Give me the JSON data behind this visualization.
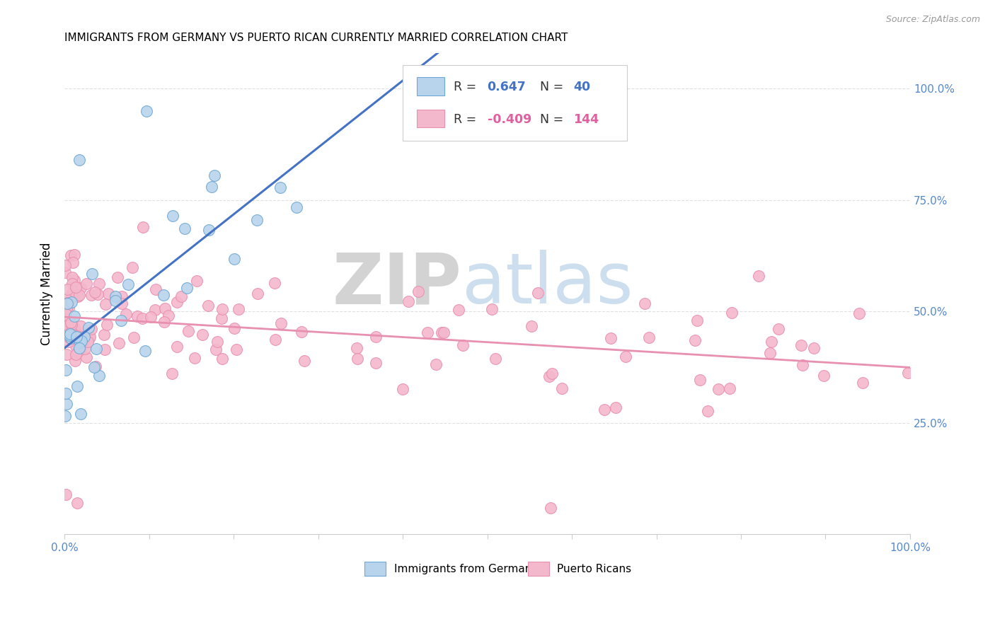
{
  "title": "IMMIGRANTS FROM GERMANY VS PUERTO RICAN CURRENTLY MARRIED CORRELATION CHART",
  "source": "Source: ZipAtlas.com",
  "ylabel": "Currently Married",
  "right_ytick_vals": [
    0.25,
    0.5,
    0.75,
    1.0
  ],
  "right_ytick_labels": [
    "25.0%",
    "50.0%",
    "75.0%",
    "100.0%"
  ],
  "legend_entries": [
    {
      "label": "Immigrants from Germany",
      "color": "#b8d4ec",
      "edge_color": "#6fa8d4",
      "R": "0.647",
      "N": "40",
      "R_color": "#4472c4",
      "N_color": "#4472c4"
    },
    {
      "label": "Puerto Ricans",
      "color": "#f4b8cc",
      "edge_color": "#e890b0",
      "R": "-0.409",
      "N": "144",
      "R_color": "#e060a0",
      "N_color": "#e060a0"
    }
  ],
  "blue_line_color": "#4472c4",
  "pink_line_color": "#e890b0",
  "background_color": "#ffffff",
  "grid_color": "#e0e0e0",
  "title_fontsize": 11,
  "axis_label_color": "#5588cc",
  "source_color": "#999999"
}
